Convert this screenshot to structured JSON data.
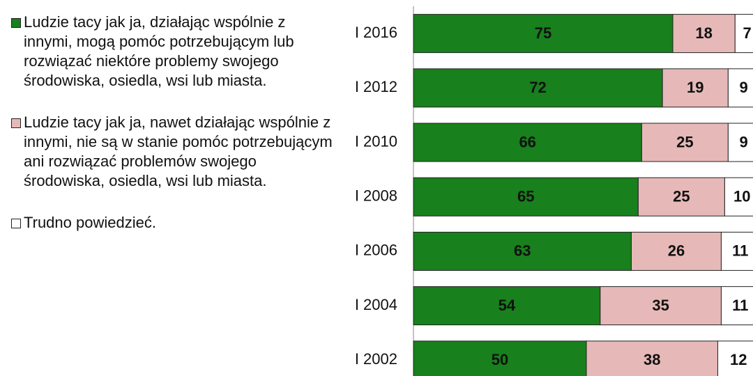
{
  "chart_data": {
    "type": "stacked-bar-horizontal",
    "categories": [
      "I 2016",
      "I 2012",
      "I 2010",
      "I 2008",
      "I 2006",
      "I 2004",
      "I 2002"
    ],
    "series": [
      {
        "name": "Ludzie tacy jak ja, działając wspólnie z innymi, mogą pomóc potrzebującym lub rozwiązać niektóre problemy swojego środowiska, osiedla, wsi lub miasta.",
        "color": "#18801c",
        "values": [
          75,
          72,
          66,
          65,
          63,
          54,
          50
        ]
      },
      {
        "name": "Ludzie tacy jak ja, nawet działając wspólnie z innymi, nie są w stanie pomóc potrzebującym ani rozwiązać problemów swojego środowiska, osiedla, wsi lub miasta.",
        "color": "#e6b9b8",
        "values": [
          18,
          19,
          25,
          25,
          26,
          35,
          38
        ]
      },
      {
        "name": "Trudno powiedzieć.",
        "color": "#ffffff",
        "values": [
          7,
          9,
          9,
          10,
          11,
          11,
          12
        ]
      }
    ],
    "xlim": [
      0,
      100
    ]
  }
}
